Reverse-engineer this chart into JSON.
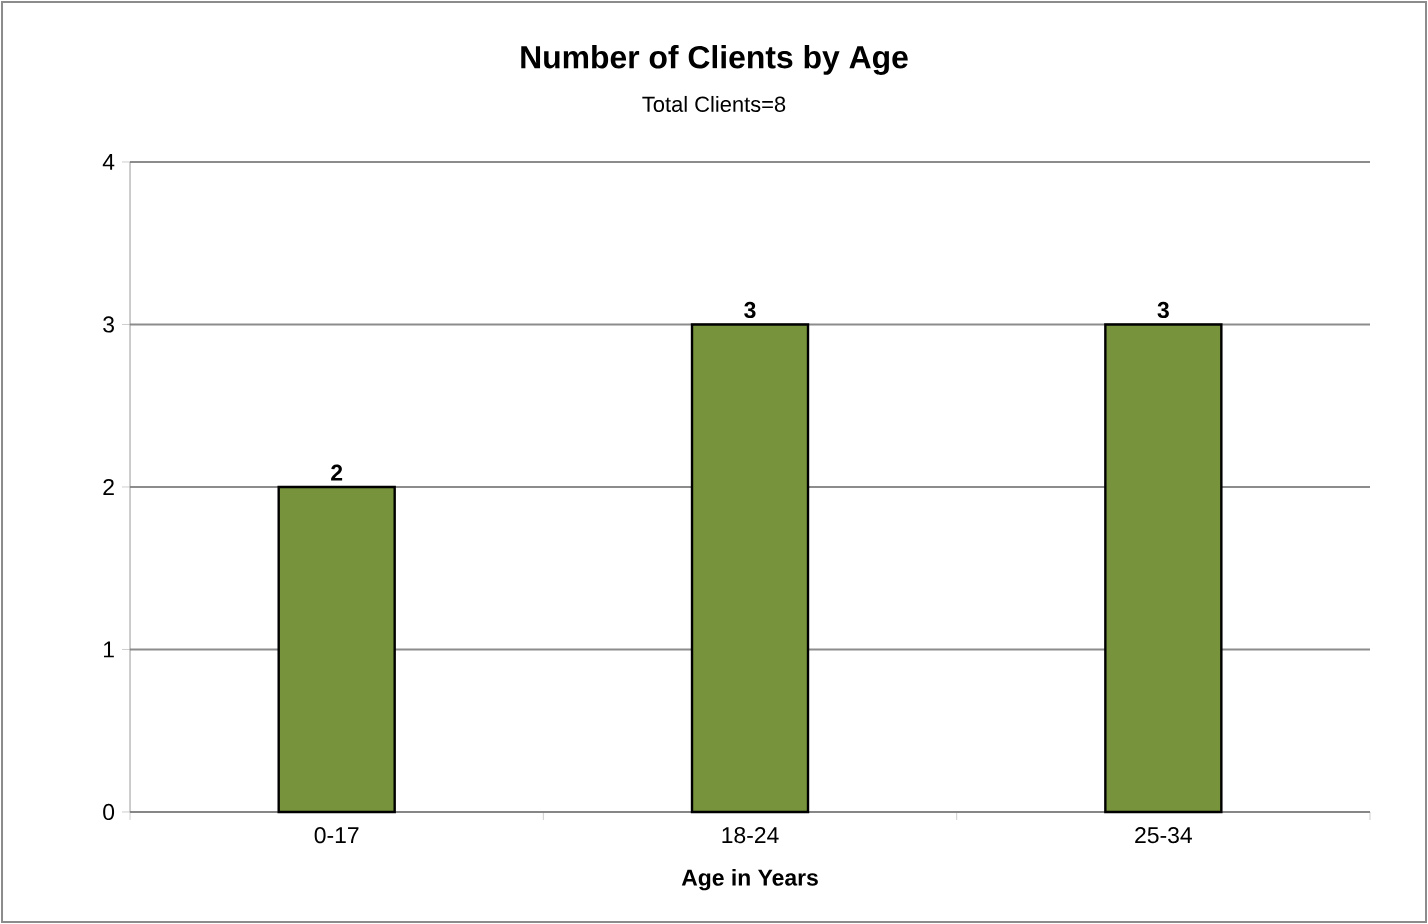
{
  "chart_data": {
    "type": "bar",
    "title": "Number of Clients by Age",
    "subtitle": "Total Clients=8",
    "xlabel": "Age in Years",
    "categories": [
      "0-17",
      "18-24",
      "25-34"
    ],
    "values": [
      2,
      3,
      3
    ],
    "color": "#77933c",
    "ylim": [
      0,
      4
    ],
    "yticks": [
      0,
      1,
      2,
      3,
      4
    ],
    "grid": "y",
    "data_labels": true
  }
}
